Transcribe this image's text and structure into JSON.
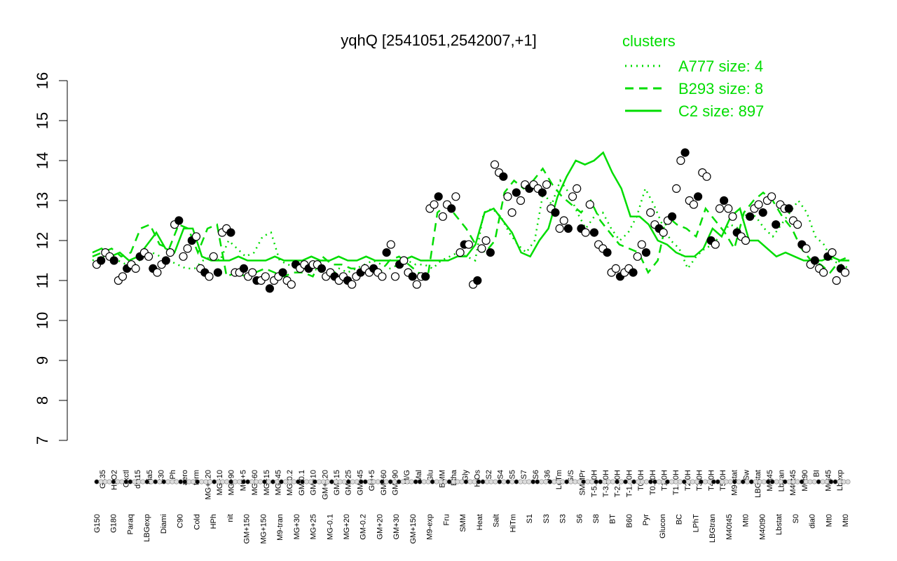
{
  "chart_data": {
    "type": "line",
    "title": "yqhQ [2541051,2542007,+1]",
    "xlabel": "",
    "ylabel": "",
    "ylim": [
      7,
      16
    ],
    "yticks": [
      "7",
      "8",
      "9",
      "10",
      "11",
      "12",
      "13",
      "14",
      "15",
      "16"
    ],
    "grid": false,
    "legend": {
      "placement": "top-right",
      "title": "clusters",
      "entries": [
        {
          "label": "A777 size: 4",
          "style": "dotted"
        },
        {
          "label": "B293 size: 8",
          "style": "dashed"
        },
        {
          "label": "C2 size: 897",
          "style": "solid"
        }
      ]
    },
    "colors": {
      "series": "#00dd00",
      "points_outline": "#000000",
      "points_fill": "#ffffff",
      "points_dark": "#000000"
    },
    "x_labels_upper": [
      "G135",
      "H2O2",
      "Oxctl",
      "dia15",
      "dia5",
      "C30",
      "LPh",
      "aero",
      "ferm",
      "MG+120",
      "MG+10",
      "MG+90",
      "MG+5",
      "MG+60",
      "MG+15",
      "MG+45",
      "MG-0.2",
      "GM-0.1",
      "GM+10",
      "GM+120",
      "GM+15",
      "GM+25",
      "GM+45",
      "GM+5",
      "GM+60",
      "GM+90",
      "M/G",
      "Mal",
      "Glu",
      "BMM",
      "Etha",
      "Gly",
      "HiOs",
      "S2",
      "S4",
      "S5",
      "S7",
      "S6",
      "B36",
      "LoTm",
      "G/S",
      "SMMPr",
      "T-5.40H",
      "T-3.40H",
      "T-2.40H",
      "T-1.40H",
      "T0.0H",
      "T0.30H",
      "T1.0H",
      "T1.30H",
      "T2.0H",
      "T3.0H",
      "T4.0H",
      "T5.0H",
      "M9-stat",
      "Sw",
      "LBGstat",
      "M0t45",
      "Lbtran",
      "M40t45",
      "M0t90",
      "BI",
      "M0t45",
      "Lbexp"
    ],
    "x_labels_lower": [
      "G150",
      "G180",
      "Paraq",
      "LBGexp",
      "Diami",
      "C90",
      "Cold",
      "HPh",
      "nit",
      "GM+150",
      "MG+150",
      "M9-tran",
      "MG+30",
      "MG+25",
      "MG-0.1",
      "MG+20",
      "GM-0.2",
      "GM+20",
      "GM+30",
      "GM+150",
      "M9-exp",
      "Fru",
      "SMM",
      "Heat",
      "Salt",
      "HiTm",
      "S1",
      "S3",
      "S3",
      "S6",
      "S8",
      "BT",
      "B60",
      "Pyr",
      "Glucon",
      "BC",
      "LPhT",
      "LBGtran",
      "M40t45",
      "Mt0",
      "M40t90",
      "Lbstat",
      "S0",
      "dia0",
      "Mt0",
      "Mt0"
    ],
    "series": [
      {
        "name": "A777 size: 4",
        "style": "dotted",
        "values": [
          11.5,
          11.6,
          11.6,
          11.5,
          11.4,
          11.4,
          11.6,
          11.7,
          11.6,
          11.5,
          11.4,
          11.3,
          11.3,
          11.5,
          11.6,
          11.5,
          12.0,
          11.8,
          11.6,
          11.7,
          12.1,
          12.2,
          11.5,
          11.4,
          11.3,
          11.3,
          11.3,
          11.2,
          11.1,
          11.3,
          11.2,
          11.3,
          11.4,
          11.5,
          11.4,
          11.3,
          11.4,
          11.5,
          11.4,
          11.4,
          11.3,
          11.5,
          11.6,
          11.7,
          11.6,
          11.5,
          12.7,
          12.8,
          12.6,
          12.2,
          11.9,
          11.7,
          12.0,
          13.2,
          12.9,
          13.5,
          13.2,
          12.7,
          12.3,
          12.6,
          12.7,
          12.3,
          12.0,
          12.2,
          12.6,
          13.3,
          12.9,
          12.4,
          12.0,
          11.8,
          11.3,
          11.6,
          11.8,
          11.9,
          12.2,
          12.4,
          12.3,
          12.7,
          12.6,
          12.3,
          12.1,
          12.4,
          12.7,
          13.0,
          12.7,
          12.1,
          11.9,
          11.5,
          11.4,
          11.3
        ]
      },
      {
        "name": "B293 size: 8",
        "style": "dashed",
        "values": [
          11.6,
          11.7,
          11.8,
          11.6,
          11.7,
          12.3,
          12.4,
          11.9,
          11.8,
          12.4,
          12.3,
          11.7,
          12.3,
          12.4,
          11.1,
          11.2,
          11.1,
          11.2,
          11.3,
          11.2,
          11.1,
          11.2,
          11.2,
          11.1,
          11.6,
          11.4,
          11.4,
          11.3,
          11.3,
          11.2,
          11.2,
          11.5,
          11.6,
          11.4,
          11.2,
          11.1,
          12.7,
          12.9,
          12.6,
          12.3,
          11.9,
          11.7,
          12.0,
          13.2,
          13.5,
          13.3,
          13.5,
          13.8,
          13.4,
          13.1,
          12.9,
          12.7,
          13.0,
          12.5,
          12.2,
          11.9,
          11.8,
          11.7,
          11.2,
          11.5,
          12.6,
          12.4,
          12.3,
          12.1,
          12.8,
          12.5,
          12.2,
          11.8,
          12.7,
          13.0,
          13.2,
          13.0,
          12.6,
          12.3,
          11.8,
          11.5,
          11.4,
          11.2,
          11.5,
          11.6
        ]
      },
      {
        "name": "C2 size: 897",
        "style": "solid",
        "values": [
          11.7,
          11.8,
          11.6,
          11.7,
          11.5,
          11.6,
          11.9,
          12.2,
          11.8,
          11.7,
          12.3,
          12.3,
          11.6,
          11.5,
          11.5,
          11.5,
          11.6,
          11.5,
          11.5,
          11.5,
          11.6,
          11.5,
          11.5,
          11.5,
          11.6,
          11.5,
          11.5,
          11.6,
          11.5,
          11.5,
          11.6,
          11.5,
          11.5,
          11.5,
          11.5,
          11.6,
          11.5,
          11.5,
          11.5,
          11.5,
          11.6,
          11.6,
          11.9,
          12.7,
          12.8,
          12.5,
          12.2,
          11.7,
          11.6,
          12.0,
          12.3,
          13.1,
          13.6,
          14.0,
          13.9,
          14.0,
          14.2,
          13.7,
          13.3,
          12.6,
          12.6,
          12.4,
          12.0,
          11.9,
          11.7,
          11.6,
          11.6,
          11.8,
          12.3,
          12.1,
          12.6,
          12.8,
          12.0,
          12.0,
          11.8,
          11.6,
          11.7,
          11.6,
          11.5,
          11.5,
          11.5,
          11.6,
          11.5,
          11.5
        ]
      }
    ],
    "points": [
      11.4,
      11.5,
      11.7,
      11.6,
      11.5,
      11.0,
      11.1,
      11.3,
      11.4,
      11.3,
      11.6,
      11.7,
      11.6,
      11.3,
      11.2,
      11.4,
      11.5,
      11.7,
      12.4,
      12.5,
      11.6,
      11.8,
      12.0,
      12.1,
      11.3,
      11.2,
      11.1,
      11.6,
      11.2,
      12.2,
      12.3,
      12.2,
      11.2,
      11.2,
      11.3,
      11.1,
      11.2,
      11.0,
      11.0,
      11.1,
      10.8,
      11.0,
      11.1,
      11.2,
      11.0,
      10.9,
      11.4,
      11.3,
      11.4,
      11.3,
      11.4,
      11.4,
      11.3,
      11.1,
      11.2,
      11.1,
      11.0,
      11.1,
      11.0,
      10.9,
      11.1,
      11.2,
      11.3,
      11.2,
      11.3,
      11.2,
      11.1,
      11.7,
      11.9,
      11.1,
      11.4,
      11.5,
      11.2,
      11.1,
      10.9,
      11.1,
      11.1,
      12.8,
      12.9,
      13.1,
      12.6,
      12.9,
      12.8,
      13.1,
      11.7,
      11.9,
      11.9,
      10.9,
      11.0,
      11.8,
      12.0,
      11.7,
      13.9,
      13.7,
      13.6,
      13.1,
      12.7,
      13.2,
      13.0,
      13.4,
      13.3,
      13.4,
      13.3,
      13.2,
      13.4,
      12.8,
      12.7,
      12.3,
      12.5,
      12.3,
      13.1,
      13.3,
      12.3,
      12.2,
      12.9,
      12.2,
      11.9,
      11.8,
      11.7,
      11.2,
      11.3,
      11.1,
      11.2,
      11.3,
      11.2,
      11.6,
      11.9,
      11.7,
      12.7,
      12.4,
      12.3,
      12.2,
      12.5,
      12.6,
      13.3,
      14.0,
      14.2,
      13.0,
      12.9,
      13.1,
      13.7,
      13.6,
      12.0,
      11.9,
      12.8,
      13.0,
      12.8,
      12.6,
      12.2,
      12.1,
      12.0,
      12.6,
      12.8,
      12.9,
      12.7,
      13.0,
      13.1,
      12.4,
      12.9,
      12.8,
      12.8,
      12.5,
      12.4,
      11.9,
      11.8,
      11.4,
      11.5,
      11.3,
      11.2,
      11.6,
      11.7,
      11.0,
      11.3,
      11.2
    ]
  }
}
